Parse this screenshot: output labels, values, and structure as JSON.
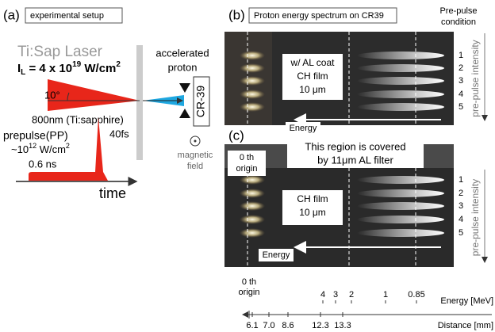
{
  "panel_a": {
    "label": "(a)",
    "title": "experimental setup",
    "laser": "Ti:Sap Laser",
    "intensity": [
      "I",
      "L",
      " = 4 x 10",
      "19",
      " W/cm",
      "2"
    ],
    "angle": "10°",
    "proton": [
      "accelerated",
      "proton"
    ],
    "detector": "CR-39",
    "wavelength": "800nm (Ti:sapphire)",
    "pulse": "40fs",
    "prepulse": "prepulse(PP)",
    "prepulse_intensity": [
      "~10",
      "12",
      " W/cm",
      "2"
    ],
    "prepulse_time": "0.6 ns",
    "time": "time",
    "field": [
      "magnetic",
      "field"
    ]
  },
  "panel_b": {
    "label": "(b)",
    "title": "Proton energy spectrum on CR39",
    "condition": [
      "Pre-pulse",
      "condition"
    ],
    "note": [
      "w/ AL coat",
      "CH film",
      "10 μm"
    ],
    "energy": "Energy",
    "rows": [
      "1",
      "2",
      "3",
      "4",
      "5"
    ],
    "side": "pre-pulse intensity"
  },
  "panel_c": {
    "label": "(c)",
    "origin": [
      "0 th",
      "origin"
    ],
    "filter": [
      "This region is covered",
      "by 11μm AL filter"
    ],
    "note": [
      "CH film",
      "10 μm"
    ],
    "energy": "Energy",
    "rows": [
      "1",
      "2",
      "3",
      "4",
      "5"
    ],
    "side": "pre-pulse intensity"
  },
  "scale": {
    "origin": [
      "0 th",
      "origin"
    ],
    "energy_title": "Energy [MeV]",
    "distance_title": "Distance [mm]",
    "energies": [
      "4",
      "3",
      "2",
      "1",
      "0.85"
    ],
    "distances": [
      "6.1",
      "7.0",
      "8.6",
      "12.3",
      "13.3"
    ]
  }
}
